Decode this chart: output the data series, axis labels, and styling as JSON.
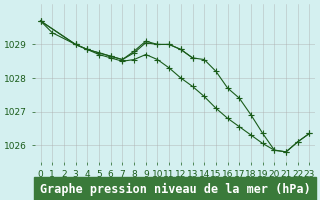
{
  "x": [
    0,
    1,
    2,
    3,
    4,
    5,
    6,
    7,
    8,
    9,
    10,
    11,
    12,
    13,
    14,
    15,
    16,
    17,
    18,
    19,
    20,
    21,
    22,
    23
  ],
  "line1": [
    1029.7,
    1029.35,
    null,
    1029.0,
    1028.85,
    1028.75,
    1028.65,
    1028.55,
    1028.75,
    1029.05,
    1029.0,
    1029.0,
    null,
    null,
    1028.55,
    1028.2,
    1027.7,
    1027.4,
    1026.9,
    1026.4,
    1025.85,
    1025.8,
    1026.1,
    1026.35
  ],
  "line2": [
    1029.7,
    null,
    null,
    1029.0,
    1028.85,
    1028.75,
    1028.65,
    1028.55,
    1028.8,
    1029.1,
    1029.0,
    1029.0,
    1028.85,
    1028.6,
    1028.55,
    1028.2,
    1027.7,
    1027.4,
    1026.9,
    1026.35,
    1025.95,
    1025.8,
    1026.1,
    1026.35
  ],
  "line3": [
    1029.7,
    null,
    null,
    1029.0,
    1028.85,
    1028.7,
    1028.6,
    1028.5,
    1028.55,
    null,
    null,
    null,
    null,
    null,
    null,
    null,
    null,
    null,
    null,
    null,
    null,
    null,
    null,
    null
  ],
  "series": [
    [
      1029.7,
      1029.35,
      null,
      1029.0,
      1028.85,
      1028.75,
      1028.65,
      1028.55,
      1028.75,
      1029.05,
      1029.0,
      1029.0,
      1028.85,
      1028.6,
      1028.55,
      1028.2,
      1027.7,
      1027.4,
      1026.9,
      1026.35,
      1025.85,
      1025.8,
      1026.1,
      1026.35
    ],
    [
      1029.7,
      null,
      null,
      1029.0,
      1028.85,
      1028.75,
      1028.65,
      1028.55,
      1028.8,
      1029.1,
      1029.0,
      1029.0,
      1028.85,
      1028.6,
      null,
      null,
      null,
      null,
      null,
      null,
      null,
      null,
      null,
      null
    ],
    [
      1029.7,
      null,
      null,
      1029.0,
      1028.85,
      1028.7,
      1028.6,
      1028.5,
      1028.55,
      1028.7,
      1028.55,
      1028.3,
      1028.0,
      1027.75,
      1027.45,
      1027.1,
      1026.8,
      1026.55,
      1026.3,
      1026.05,
      1025.85,
      1025.8,
      1026.1,
      1026.35
    ]
  ],
  "ylim": [
    1025.5,
    1030.2
  ],
  "yticks": [
    1026,
    1027,
    1028,
    1029
  ],
  "xticks": [
    0,
    1,
    2,
    3,
    4,
    5,
    6,
    7,
    8,
    9,
    10,
    11,
    12,
    13,
    14,
    15,
    16,
    17,
    18,
    19,
    20,
    21,
    22,
    23
  ],
  "xlabel": "Graphe pression niveau de la mer (hPa)",
  "line_color": "#1a5c1a",
  "marker": "+",
  "marker_size": 4,
  "bg_color": "#d4f0f0",
  "grid_color": "#aaaaaa",
  "text_bg": "#3a7a3a",
  "text_color": "#ffffff",
  "title_fontsize": 8.5,
  "tick_fontsize": 6.5
}
